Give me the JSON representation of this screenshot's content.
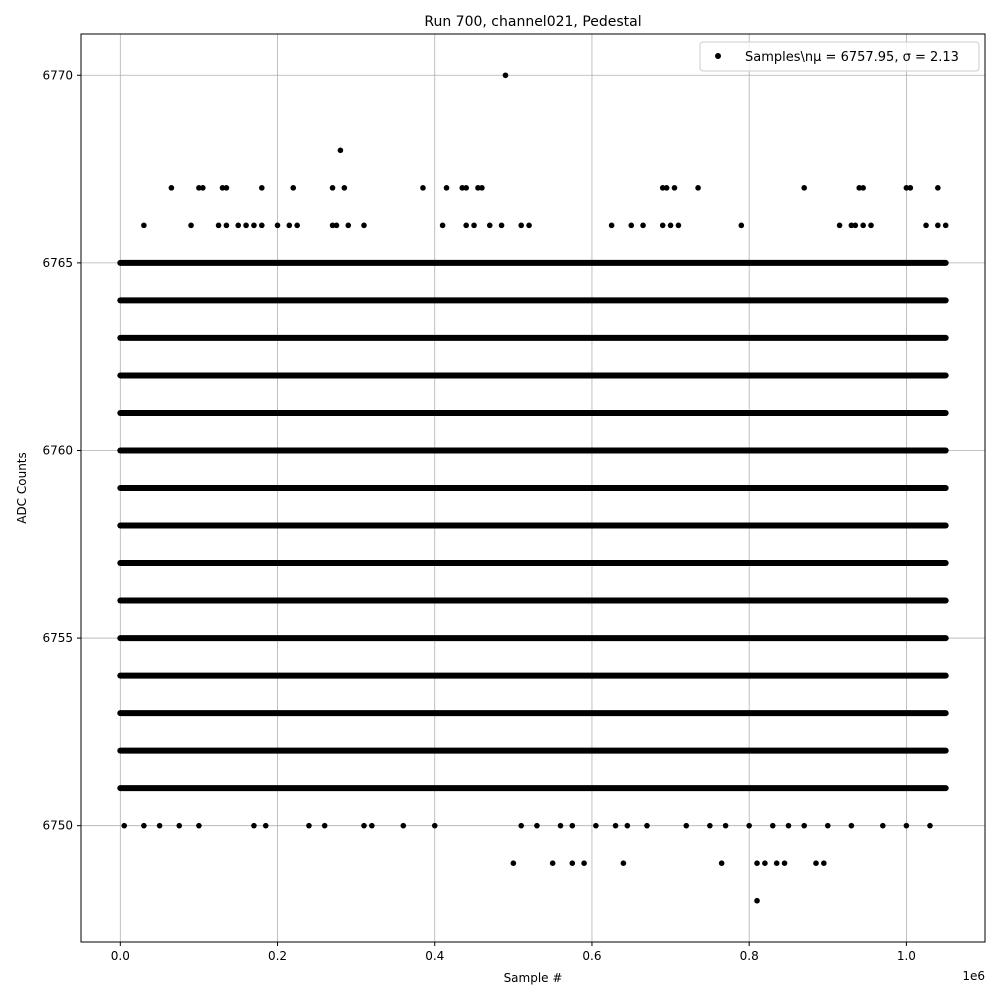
{
  "chart_data": {
    "type": "scatter",
    "title": "Run 700, channel021, Pedestal",
    "xlabel": "Sample #",
    "ylabel": "ADC Counts",
    "x_offset_label": "1e6",
    "xlim": [
      -0.05,
      1.1
    ],
    "ylim": [
      6746.9,
      6771.1
    ],
    "x_ticks": [
      0.0,
      0.2,
      0.4,
      0.6,
      0.8,
      1.0
    ],
    "x_tick_labels": [
      "0.0",
      "0.2",
      "0.4",
      "0.6",
      "0.8",
      "1.0"
    ],
    "y_ticks": [
      6750,
      6755,
      6760,
      6765,
      6770
    ],
    "y_tick_labels": [
      "6750",
      "6755",
      "6760",
      "6765",
      "6770"
    ],
    "grid": true,
    "legend_placement": "top-right",
    "marker_color": "#000000",
    "series": [
      {
        "name": "Samples\\nμ = 6757.95, σ = 2.13",
        "dense_levels": [
          6751,
          6752,
          6753,
          6754,
          6755,
          6756,
          6757,
          6758,
          6759,
          6760,
          6761,
          6762,
          6763,
          6764,
          6765
        ],
        "dense_x_range": [
          0.0,
          1.05
        ],
        "sparse_points": [
          [
            0.49,
            6770
          ],
          [
            0.28,
            6768
          ],
          [
            0.065,
            6767
          ],
          [
            0.1,
            6767
          ],
          [
            0.105,
            6767
          ],
          [
            0.13,
            6767
          ],
          [
            0.135,
            6767
          ],
          [
            0.18,
            6767
          ],
          [
            0.22,
            6767
          ],
          [
            0.27,
            6767
          ],
          [
            0.285,
            6767
          ],
          [
            0.385,
            6767
          ],
          [
            0.415,
            6767
          ],
          [
            0.435,
            6767
          ],
          [
            0.44,
            6767
          ],
          [
            0.455,
            6767
          ],
          [
            0.46,
            6767
          ],
          [
            0.69,
            6767
          ],
          [
            0.695,
            6767
          ],
          [
            0.705,
            6767
          ],
          [
            0.735,
            6767
          ],
          [
            0.87,
            6767
          ],
          [
            0.94,
            6767
          ],
          [
            0.945,
            6767
          ],
          [
            1.0,
            6767
          ],
          [
            1.005,
            6767
          ],
          [
            1.04,
            6767
          ],
          [
            0.03,
            6766
          ],
          [
            0.09,
            6766
          ],
          [
            0.125,
            6766
          ],
          [
            0.135,
            6766
          ],
          [
            0.15,
            6766
          ],
          [
            0.16,
            6766
          ],
          [
            0.17,
            6766
          ],
          [
            0.18,
            6766
          ],
          [
            0.2,
            6766
          ],
          [
            0.215,
            6766
          ],
          [
            0.225,
            6766
          ],
          [
            0.27,
            6766
          ],
          [
            0.275,
            6766
          ],
          [
            0.29,
            6766
          ],
          [
            0.31,
            6766
          ],
          [
            0.41,
            6766
          ],
          [
            0.44,
            6766
          ],
          [
            0.45,
            6766
          ],
          [
            0.47,
            6766
          ],
          [
            0.485,
            6766
          ],
          [
            0.51,
            6766
          ],
          [
            0.52,
            6766
          ],
          [
            0.625,
            6766
          ],
          [
            0.65,
            6766
          ],
          [
            0.665,
            6766
          ],
          [
            0.69,
            6766
          ],
          [
            0.7,
            6766
          ],
          [
            0.71,
            6766
          ],
          [
            0.79,
            6766
          ],
          [
            0.915,
            6766
          ],
          [
            0.93,
            6766
          ],
          [
            0.935,
            6766
          ],
          [
            0.945,
            6766
          ],
          [
            0.955,
            6766
          ],
          [
            1.025,
            6766
          ],
          [
            1.04,
            6766
          ],
          [
            1.05,
            6766
          ],
          [
            0.005,
            6765
          ],
          [
            0.005,
            6750
          ],
          [
            0.03,
            6750
          ],
          [
            0.05,
            6750
          ],
          [
            0.075,
            6750
          ],
          [
            0.1,
            6750
          ],
          [
            0.17,
            6750
          ],
          [
            0.185,
            6750
          ],
          [
            0.24,
            6750
          ],
          [
            0.26,
            6750
          ],
          [
            0.31,
            6750
          ],
          [
            0.32,
            6750
          ],
          [
            0.36,
            6750
          ],
          [
            0.4,
            6750
          ],
          [
            0.51,
            6750
          ],
          [
            0.53,
            6750
          ],
          [
            0.56,
            6750
          ],
          [
            0.575,
            6750
          ],
          [
            0.605,
            6750
          ],
          [
            0.63,
            6750
          ],
          [
            0.645,
            6750
          ],
          [
            0.67,
            6750
          ],
          [
            0.72,
            6750
          ],
          [
            0.75,
            6750
          ],
          [
            0.77,
            6750
          ],
          [
            0.8,
            6750
          ],
          [
            0.83,
            6750
          ],
          [
            0.85,
            6750
          ],
          [
            0.87,
            6750
          ],
          [
            0.9,
            6750
          ],
          [
            0.93,
            6750
          ],
          [
            0.97,
            6750
          ],
          [
            1.0,
            6750
          ],
          [
            1.03,
            6750
          ],
          [
            0.5,
            6749
          ],
          [
            0.55,
            6749
          ],
          [
            0.575,
            6749
          ],
          [
            0.59,
            6749
          ],
          [
            0.64,
            6749
          ],
          [
            0.765,
            6749
          ],
          [
            0.81,
            6749
          ],
          [
            0.82,
            6749
          ],
          [
            0.835,
            6749
          ],
          [
            0.845,
            6749
          ],
          [
            0.885,
            6749
          ],
          [
            0.895,
            6749
          ],
          [
            0.81,
            6748
          ]
        ]
      }
    ]
  }
}
